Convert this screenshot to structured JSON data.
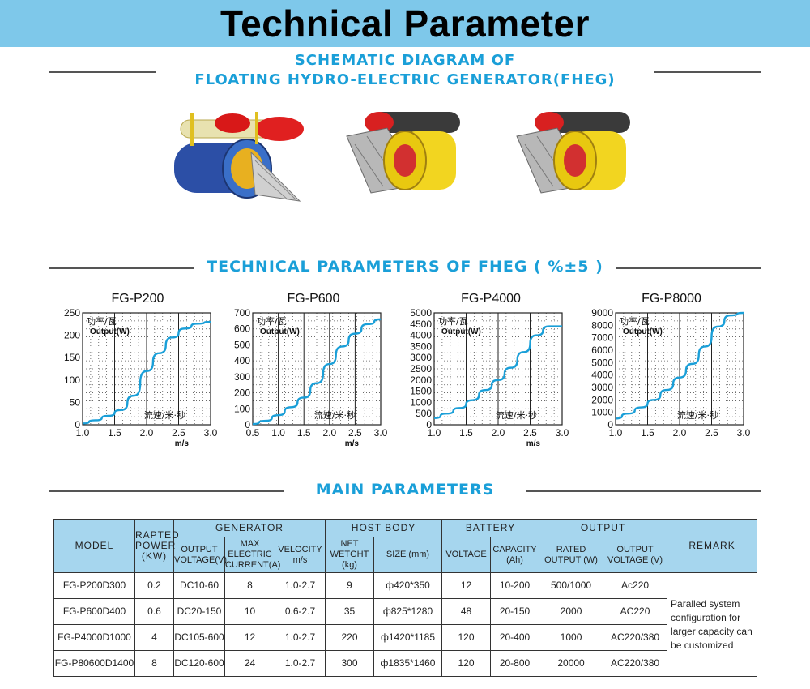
{
  "header": {
    "title": "Technical Parameter",
    "bg": "#7ec8ea"
  },
  "schematic": {
    "title_line1": "SCHEMATIC DIAGRAM OF",
    "title_line2": "FLOATING HYDRO-ELECTRIC GENERATOR(FHEG)"
  },
  "tech_section": {
    "title": "TECHNICAL PARAMETERS OF FHEG ( %±5 )"
  },
  "main_section": {
    "title": "MAIN PARAMETERS"
  },
  "accent_color": "#1a9fd8",
  "curve_color": "#1a9fd8",
  "chart_data": [
    {
      "type": "line",
      "title": "FG-P200",
      "ylabel_cn": "功率/瓦",
      "ylabel_en": "Output(W)",
      "xlabel_cn": "流速/米·秒",
      "xlabel_unit": "m/s",
      "xlim": [
        1.0,
        3.0
      ],
      "ylim": [
        0,
        250
      ],
      "xticks": [
        "1.0",
        "1.5",
        "2.0",
        "2.5",
        "3.0"
      ],
      "yticks": [
        "0",
        "50",
        "100",
        "150",
        "200",
        "250"
      ],
      "x": [
        1.0,
        1.2,
        1.4,
        1.6,
        1.8,
        2.0,
        2.2,
        2.4,
        2.6,
        2.8,
        3.0
      ],
      "y": [
        3,
        10,
        20,
        33,
        65,
        120,
        160,
        195,
        215,
        226,
        230
      ]
    },
    {
      "type": "line",
      "title": "FG-P600",
      "ylabel_cn": "功率/瓦",
      "ylabel_en": "Output(W)",
      "xlabel_cn": "流速/米·秒",
      "xlabel_unit": "m/s",
      "xlim": [
        0.5,
        3.0
      ],
      "ylim": [
        0,
        700
      ],
      "xticks": [
        "0.5",
        "1.0",
        "1.5",
        "2.0",
        "2.5",
        "3.0"
      ],
      "yticks": [
        "0",
        "100",
        "200",
        "300",
        "400",
        "500",
        "600",
        "700"
      ],
      "x": [
        0.5,
        0.75,
        1.0,
        1.25,
        1.5,
        1.75,
        2.0,
        2.25,
        2.5,
        2.75,
        3.0
      ],
      "y": [
        5,
        25,
        60,
        110,
        170,
        260,
        380,
        490,
        570,
        630,
        660
      ]
    },
    {
      "type": "line",
      "title": "FG-P4000",
      "ylabel_cn": "功率/瓦",
      "ylabel_en": "Output(W)",
      "xlabel_cn": "流速/米·秒",
      "xlabel_unit": "m/s",
      "xlim": [
        1.0,
        3.0
      ],
      "ylim": [
        0,
        5000
      ],
      "xticks": [
        "1.0",
        "1.5",
        "2.0",
        "2.5",
        "3.0"
      ],
      "yticks": [
        "0",
        "500",
        "1000",
        "1500",
        "2000",
        "2500",
        "3000",
        "3500",
        "4000",
        "4500",
        "5000"
      ],
      "x": [
        1.0,
        1.2,
        1.4,
        1.6,
        1.8,
        2.0,
        2.2,
        2.4,
        2.6,
        2.8,
        3.0
      ],
      "y": [
        300,
        500,
        750,
        1100,
        1550,
        2000,
        2550,
        3250,
        4000,
        4400,
        4400
      ]
    },
    {
      "type": "line",
      "title": "FG-P8000",
      "ylabel_cn": "功率/瓦",
      "ylabel_en": "Output(W)",
      "xlabel_cn": "流速/米·秒",
      "xlabel_unit": "",
      "xlim": [
        1.0,
        3.0
      ],
      "ylim": [
        0,
        9000
      ],
      "xticks": [
        "1.0",
        "1.5",
        "2.0",
        "2.5",
        "3.0"
      ],
      "yticks": [
        "0",
        "1000",
        "2000",
        "3000",
        "4000",
        "5000",
        "6000",
        "7000",
        "8000",
        "9000"
      ],
      "x": [
        1.0,
        1.2,
        1.4,
        1.6,
        1.8,
        2.0,
        2.2,
        2.4,
        2.6,
        2.8,
        3.0
      ],
      "y": [
        500,
        900,
        1400,
        2000,
        2800,
        3800,
        4900,
        6300,
        7900,
        8800,
        9000
      ]
    }
  ],
  "table": {
    "group_headers": {
      "model": "MODEL",
      "rated_power": "RAPTED POWER (KW)",
      "generator": "GENERATOR",
      "host_body": "HOST BODY",
      "battery": "BATTERY",
      "output": "OUTPUT",
      "remark": "REMARK"
    },
    "sub_headers": {
      "output_voltage": "OUTPUT VOLTAGE(V)",
      "max_current": "MAX ELECTRIC CURRENT(A)",
      "velocity": "VELOCITY m/s",
      "net_weight": "NET WETGHT (kg)",
      "size": "SIZE (mm)",
      "voltage": "VOLTAGE",
      "capacity": "CAPACITY (Ah)",
      "rated_output": "RATED OUTPUT (W)",
      "out_voltage": "OUTPUT VOLTAGE (V)"
    },
    "rows": [
      {
        "model": "FG-P200D300",
        "power": "0.2",
        "out_v": "DC10-60",
        "current": "8",
        "velocity": "1.0-2.7",
        "weight": "9",
        "size": "ф420*350",
        "voltage": "12",
        "capacity": "10-200",
        "rated": "500/1000",
        "o_voltage": "Ac220"
      },
      {
        "model": "FG-P600D400",
        "power": "0.6",
        "out_v": "DC20-150",
        "current": "10",
        "velocity": "0.6-2.7",
        "weight": "35",
        "size": "ф825*1280",
        "voltage": "48",
        "capacity": "20-150",
        "rated": "2000",
        "o_voltage": "AC220"
      },
      {
        "model": "FG-P4000D1000",
        "power": "4",
        "out_v": "DC105-600",
        "current": "12",
        "velocity": "1.0-2.7",
        "weight": "220",
        "size": "ф1420*1185",
        "voltage": "120",
        "capacity": "20-400",
        "rated": "1000",
        "o_voltage": "AC220/380"
      },
      {
        "model": "FG-P80600D1400",
        "power": "8",
        "out_v": "DC120-600",
        "current": "24",
        "velocity": "1.0-2.7",
        "weight": "300",
        "size": "ф1835*1460",
        "voltage": "120",
        "capacity": "20-800",
        "rated": "20000",
        "o_voltage": "AC220/380"
      }
    ],
    "remark": "Paralled system configuration for larger capacity can be customized"
  }
}
